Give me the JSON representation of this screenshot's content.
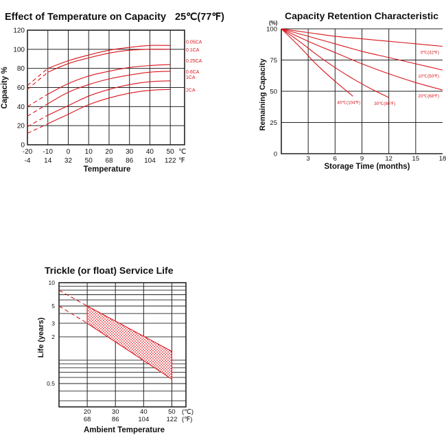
{
  "colors": {
    "curve": "#d9141b",
    "grid": "#222222",
    "text": "#111111",
    "background": "#ffffff"
  },
  "chart_data": [
    {
      "id": "temperature_capacity",
      "type": "line",
      "title": "Effect of Temperature on Capacity",
      "title_suffix": "25℃(77℉)",
      "xlabel": "Temperature",
      "ylabel": "Capacity %",
      "x_ticks_c": [
        "-20",
        "-10",
        "0",
        "10",
        "20",
        "30",
        "40",
        "50"
      ],
      "x_ticks_f": [
        "-4",
        "14",
        "32",
        "50",
        "68",
        "86",
        "104",
        "122"
      ],
      "x_unit_c": "℃",
      "x_unit_f": "℉",
      "y_ticks": [
        "120",
        "100",
        "80",
        "60",
        "40",
        "20",
        "0"
      ],
      "xlim": [
        -20,
        57
      ],
      "ylim": [
        0,
        120
      ],
      "grid": true,
      "series": [
        {
          "name": "0.05CA",
          "x": [
            -20,
            -10,
            0,
            10,
            20,
            30,
            40,
            50
          ],
          "y": [
            62,
            80,
            88,
            94,
            99,
            102,
            104,
            104
          ],
          "dashed_below": -10
        },
        {
          "name": "0.1CA",
          "x": [
            -20,
            -10,
            0,
            10,
            20,
            30,
            40,
            50
          ],
          "y": [
            58,
            76,
            85,
            91,
            96,
            99,
            100,
            100
          ],
          "dashed_below": -10
        },
        {
          "name": "0.25CA",
          "x": [
            -20,
            -10,
            0,
            10,
            20,
            30,
            40,
            50
          ],
          "y": [
            40,
            53,
            64,
            72,
            77,
            81,
            83,
            84
          ],
          "dashed_below": -10
        },
        {
          "name": "0.6CA",
          "x": [
            -20,
            -10,
            0,
            10,
            20,
            30,
            40,
            50
          ],
          "y": [
            30,
            43,
            55,
            63,
            69,
            73,
            76,
            77
          ],
          "dashed_below": -10
        },
        {
          "name": "1CA",
          "x": [
            -20,
            -10,
            0,
            10,
            20,
            30,
            40,
            50
          ],
          "y": [
            19,
            31,
            41,
            51,
            58,
            63,
            66,
            67
          ],
          "dashed_below": -10
        },
        {
          "name": "2CA",
          "x": [
            -20,
            -10,
            0,
            10,
            20,
            30,
            40,
            50
          ],
          "y": [
            12,
            22,
            32,
            42,
            49,
            54,
            57,
            58
          ],
          "dashed_below": -10
        }
      ]
    },
    {
      "id": "capacity_retention",
      "type": "line",
      "title": "Capacity Retention Characteristic",
      "xlabel": "Storage Time (months)",
      "ylabel": "Remaining Capacity",
      "y_unit": "(%)",
      "x_ticks": [
        "3",
        "6",
        "9",
        "12",
        "15",
        "18"
      ],
      "y_ticks": [
        "100",
        "75",
        "50",
        "25",
        "0"
      ],
      "xlim": [
        0,
        18
      ],
      "ylim": [
        0,
        100
      ],
      "grid": true,
      "series": [
        {
          "name": "0℃(32℉)",
          "x": [
            0,
            3,
            6,
            9,
            12,
            15,
            18
          ],
          "y": [
            100,
            97,
            94,
            92,
            90,
            88,
            86
          ]
        },
        {
          "name": "10℃(50℉)",
          "x": [
            0,
            3,
            6,
            9,
            12,
            15,
            18
          ],
          "y": [
            100,
            94,
            88,
            82,
            77,
            72,
            67
          ]
        },
        {
          "name": "20℃(68℉)",
          "x": [
            0,
            3,
            6,
            9,
            12,
            15,
            18
          ],
          "y": [
            100,
            90,
            81,
            72,
            64,
            57,
            51
          ]
        },
        {
          "name": "30℃(86℉)",
          "x": [
            0,
            2,
            4,
            6,
            8,
            10,
            12
          ],
          "y": [
            100,
            90,
            79,
            69,
            60,
            52,
            45
          ]
        },
        {
          "name": "40℃(104℉)",
          "x": [
            0,
            2,
            4,
            6,
            8
          ],
          "y": [
            100,
            86,
            71,
            58,
            46
          ]
        }
      ]
    },
    {
      "id": "trickle_service_life",
      "type": "area",
      "title": "Trickle (or float) Service Life",
      "xlabel": "Ambient Temperature",
      "ylabel": "Life (years)",
      "x_ticks_c": [
        "20",
        "30",
        "40",
        "50"
      ],
      "x_ticks_f": [
        "68",
        "86",
        "104",
        "122"
      ],
      "x_unit_c": "(℃)",
      "x_unit_f": "(℉)",
      "y_scale": "log",
      "y_ticks": [
        "10",
        "5",
        "3",
        "2",
        "0.5"
      ],
      "xlim": [
        10,
        55
      ],
      "ylim": [
        0.25,
        10
      ],
      "grid": true,
      "band": {
        "x": [
          20,
          50
        ],
        "upper": [
          5,
          1.3
        ],
        "lower": [
          3,
          0.57
        ],
        "upper_extension": {
          "x": [
            10,
            20
          ],
          "y": [
            8,
            5
          ]
        },
        "lower_extension": {
          "x": [
            10,
            20
          ],
          "y": [
            5,
            3
          ]
        }
      }
    }
  ]
}
